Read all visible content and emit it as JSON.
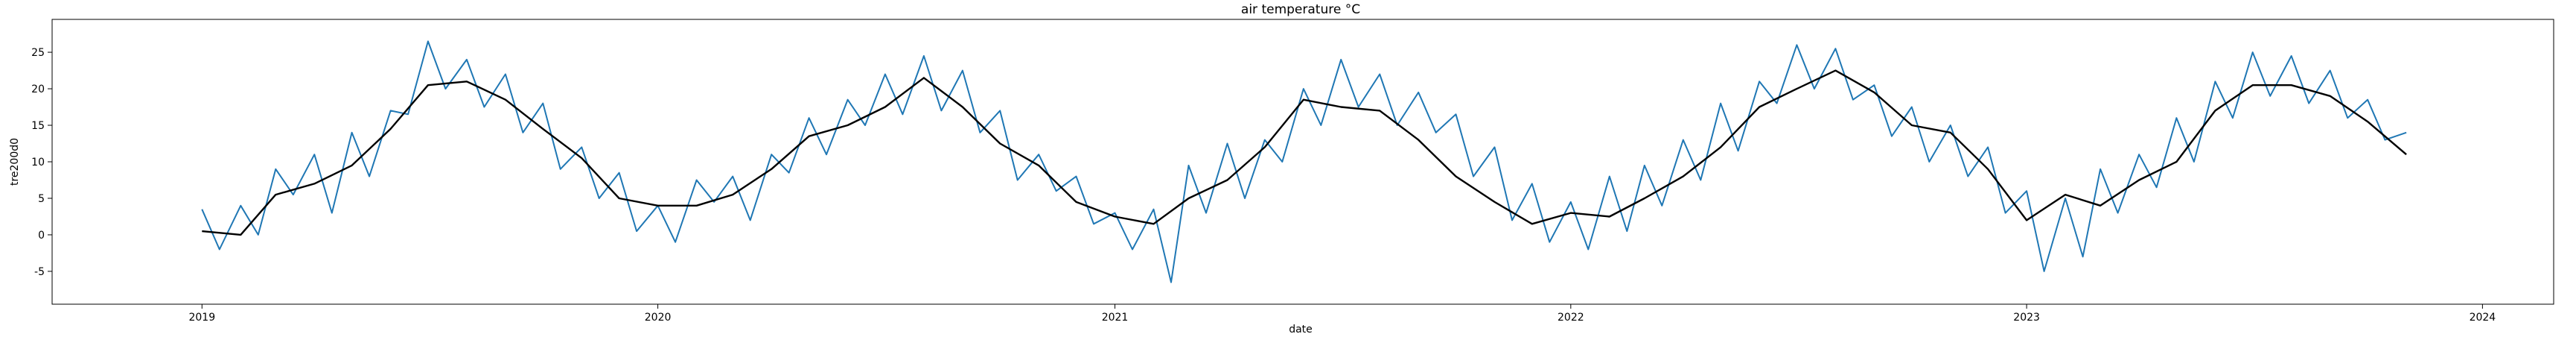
{
  "chart_data": {
    "type": "line",
    "title": "air temperature °C",
    "xlabel": "date",
    "ylabel": "tre200d0",
    "x_range": [
      "2018-09-03",
      "2024-02-27"
    ],
    "ylim": [
      -9.5,
      29.5
    ],
    "x_ticks": [
      "2019",
      "2020",
      "2021",
      "2022",
      "2023",
      "2024"
    ],
    "y_ticks": [
      -5,
      0,
      5,
      10,
      15,
      20,
      25
    ],
    "grid": false,
    "colors": {
      "daily": "#1f77b4",
      "smoothed": "#000000"
    },
    "series": [
      {
        "style": "daily",
        "x": [
          "2019-01-01",
          "2019-01-15",
          "2019-02-01",
          "2019-02-15",
          "2019-03-01",
          "2019-03-15",
          "2019-04-01",
          "2019-04-15",
          "2019-05-01",
          "2019-05-15",
          "2019-06-01",
          "2019-06-15",
          "2019-07-01",
          "2019-07-15",
          "2019-08-01",
          "2019-08-15",
          "2019-09-01",
          "2019-09-15",
          "2019-10-01",
          "2019-10-15",
          "2019-11-01",
          "2019-11-15",
          "2019-12-01",
          "2019-12-15",
          "2020-01-01",
          "2020-01-15",
          "2020-02-01",
          "2020-02-15",
          "2020-03-01",
          "2020-03-15",
          "2020-04-01",
          "2020-04-15",
          "2020-05-01",
          "2020-05-15",
          "2020-06-01",
          "2020-06-15",
          "2020-07-01",
          "2020-07-15",
          "2020-08-01",
          "2020-08-15",
          "2020-09-01",
          "2020-09-15",
          "2020-10-01",
          "2020-10-15",
          "2020-11-01",
          "2020-11-15",
          "2020-12-01",
          "2020-12-15",
          "2021-01-01",
          "2021-01-15",
          "2021-02-01",
          "2021-02-15",
          "2021-03-01",
          "2021-03-15",
          "2021-04-01",
          "2021-04-15",
          "2021-05-01",
          "2021-05-15",
          "2021-06-01",
          "2021-06-15",
          "2021-07-01",
          "2021-07-15",
          "2021-08-01",
          "2021-08-15",
          "2021-09-01",
          "2021-09-15",
          "2021-10-01",
          "2021-10-15",
          "2021-11-01",
          "2021-11-15",
          "2021-12-01",
          "2021-12-15",
          "2022-01-01",
          "2022-01-15",
          "2022-02-01",
          "2022-02-15",
          "2022-03-01",
          "2022-03-15",
          "2022-04-01",
          "2022-04-15",
          "2022-05-01",
          "2022-05-15",
          "2022-06-01",
          "2022-06-15",
          "2022-07-01",
          "2022-07-15",
          "2022-08-01",
          "2022-08-15",
          "2022-09-01",
          "2022-09-15",
          "2022-10-01",
          "2022-10-15",
          "2022-11-01",
          "2022-11-15",
          "2022-12-01",
          "2022-12-15",
          "2023-01-01",
          "2023-01-15",
          "2023-02-01",
          "2023-02-15",
          "2023-03-01",
          "2023-03-15",
          "2023-04-01",
          "2023-04-15",
          "2023-05-01",
          "2023-05-15",
          "2023-06-01",
          "2023-06-15",
          "2023-07-01",
          "2023-07-15",
          "2023-08-01",
          "2023-08-15",
          "2023-09-01",
          "2023-09-15",
          "2023-10-01",
          "2023-10-15",
          "2023-11-01"
        ],
        "y": [
          3.5,
          -2.0,
          4.0,
          0.0,
          9.0,
          5.5,
          11.0,
          3.0,
          14.0,
          8.0,
          17.0,
          16.5,
          26.5,
          20.0,
          24.0,
          17.5,
          22.0,
          14.0,
          18.0,
          9.0,
          12.0,
          5.0,
          8.5,
          0.5,
          4.0,
          -1.0,
          7.5,
          4.5,
          8.0,
          2.0,
          11.0,
          8.5,
          16.0,
          11.0,
          18.5,
          15.0,
          22.0,
          16.5,
          24.5,
          17.0,
          22.5,
          14.0,
          17.0,
          7.5,
          11.0,
          6.0,
          8.0,
          1.5,
          3.0,
          -2.0,
          3.5,
          -6.5,
          9.5,
          3.0,
          12.5,
          5.0,
          13.0,
          10.0,
          20.0,
          15.0,
          24.0,
          17.5,
          22.0,
          15.0,
          19.5,
          14.0,
          16.5,
          8.0,
          12.0,
          2.0,
          7.0,
          -1.0,
          4.5,
          -2.0,
          8.0,
          0.5,
          9.5,
          4.0,
          13.0,
          7.5,
          18.0,
          11.5,
          21.0,
          18.0,
          26.0,
          20.0,
          25.5,
          18.5,
          20.5,
          13.5,
          17.5,
          10.0,
          15.0,
          8.0,
          12.0,
          3.0,
          6.0,
          -5.0,
          5.0,
          -3.0,
          9.0,
          3.0,
          11.0,
          6.5,
          16.0,
          10.0,
          21.0,
          16.0,
          25.0,
          19.0,
          24.5,
          18.0,
          22.5,
          16.0,
          18.5,
          13.0,
          14.0
        ]
      },
      {
        "style": "smoothed",
        "x": [
          "2019-01-01",
          "2019-02-01",
          "2019-03-01",
          "2019-04-01",
          "2019-05-01",
          "2019-06-01",
          "2019-07-01",
          "2019-08-01",
          "2019-09-01",
          "2019-10-01",
          "2019-11-01",
          "2019-12-01",
          "2020-01-01",
          "2020-02-01",
          "2020-03-01",
          "2020-04-01",
          "2020-05-01",
          "2020-06-01",
          "2020-07-01",
          "2020-08-01",
          "2020-09-01",
          "2020-10-01",
          "2020-11-01",
          "2020-12-01",
          "2021-01-01",
          "2021-02-01",
          "2021-03-01",
          "2021-04-01",
          "2021-05-01",
          "2021-06-01",
          "2021-07-01",
          "2021-08-01",
          "2021-09-01",
          "2021-10-01",
          "2021-11-01",
          "2021-12-01",
          "2022-01-01",
          "2022-02-01",
          "2022-03-01",
          "2022-04-01",
          "2022-05-01",
          "2022-06-01",
          "2022-07-01",
          "2022-08-01",
          "2022-09-01",
          "2022-10-01",
          "2022-11-01",
          "2022-12-01",
          "2023-01-01",
          "2023-02-01",
          "2023-03-01",
          "2023-04-01",
          "2023-05-01",
          "2023-06-01",
          "2023-07-01",
          "2023-08-01",
          "2023-09-01",
          "2023-10-01",
          "2023-11-01"
        ],
        "y": [
          0.5,
          0.0,
          5.5,
          7.0,
          9.5,
          14.5,
          20.5,
          21.0,
          18.5,
          14.5,
          10.5,
          5.0,
          4.0,
          4.0,
          5.5,
          9.0,
          13.5,
          15.0,
          17.5,
          21.5,
          17.5,
          12.5,
          9.5,
          4.5,
          2.5,
          1.5,
          5.0,
          7.5,
          12.0,
          18.5,
          17.5,
          17.0,
          13.0,
          8.0,
          4.5,
          1.5,
          3.0,
          2.5,
          5.0,
          8.0,
          12.0,
          17.5,
          20.0,
          22.5,
          19.5,
          15.0,
          14.0,
          9.0,
          2.0,
          5.5,
          4.0,
          7.5,
          10.0,
          17.0,
          20.5,
          20.5,
          19.0,
          15.5,
          11.0
        ]
      }
    ]
  }
}
